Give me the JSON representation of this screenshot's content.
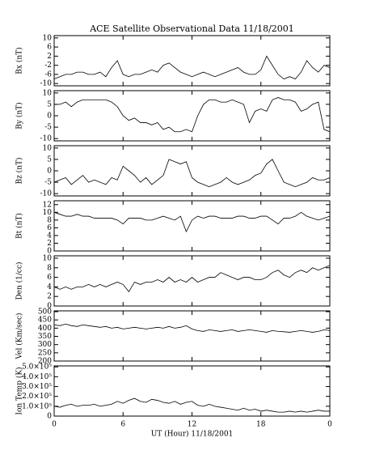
{
  "chart_data": [
    {
      "type": "line",
      "title": "ACE Satellite Observational Data   11/18/2001",
      "ylabel": "Bx (nT)",
      "color": "#000000",
      "x": [
        0,
        0.5,
        1,
        1.5,
        2,
        2.5,
        3,
        3.5,
        4,
        4.5,
        5,
        5.5,
        6,
        6.5,
        7,
        7.5,
        8,
        8.5,
        9,
        9.5,
        10,
        10.5,
        11,
        11.5,
        12,
        12.5,
        13,
        13.5,
        14,
        14.5,
        15,
        15.5,
        16,
        16.5,
        17,
        17.5,
        18,
        18.5,
        19,
        19.5,
        20,
        20.5,
        21,
        21.5,
        22,
        22.5,
        23,
        23.5,
        24
      ],
      "values": [
        -8,
        -7,
        -6,
        -6,
        -5,
        -5,
        -6,
        -6,
        -5,
        -7,
        -3,
        0,
        -6,
        -7,
        -6,
        -6,
        -5,
        -4,
        -5,
        -2,
        -1,
        -3,
        -5,
        -6,
        -7,
        -6,
        -5,
        -6,
        -7,
        -6,
        -5,
        -4,
        -3,
        -5,
        -6,
        -6,
        -4,
        2,
        -2,
        -6,
        -8,
        -7,
        -8,
        -5,
        0,
        -3,
        -5,
        -2,
        -3
      ],
      "xlim": [
        0,
        24
      ],
      "xticks": [
        0,
        6,
        12,
        18,
        {
          "value": 24,
          "label": "0"
        }
      ],
      "ylim": [
        -11,
        11
      ],
      "yticks": [
        10,
        6,
        2,
        -2,
        -6,
        -10
      ]
    },
    {
      "type": "line",
      "ylabel": "By (nT)",
      "color": "#000000",
      "x": [
        0,
        0.5,
        1,
        1.5,
        2,
        2.5,
        3,
        3.5,
        4,
        4.5,
        5,
        5.5,
        6,
        6.5,
        7,
        7.5,
        8,
        8.5,
        9,
        9.5,
        10,
        10.5,
        11,
        11.5,
        12,
        12.5,
        13,
        13.5,
        14,
        14.5,
        15,
        15.5,
        16,
        16.5,
        17,
        17.5,
        18,
        18.5,
        19,
        19.5,
        20,
        20.5,
        21,
        21.5,
        22,
        22.5,
        23,
        23.5,
        24
      ],
      "values": [
        5,
        5,
        6,
        4,
        6,
        7,
        7,
        7,
        7,
        7,
        6,
        4,
        0,
        -2,
        -1,
        -3,
        -3,
        -4,
        -3,
        -6,
        -5,
        -7,
        -7,
        -6,
        -7,
        0,
        5,
        7,
        7,
        6,
        6,
        7,
        6,
        5,
        -3,
        2,
        3,
        2,
        7,
        8,
        7,
        7,
        6,
        2,
        3,
        5,
        6,
        -6,
        -7
      ],
      "xlim": [
        0,
        24
      ],
      "xticks": [
        0,
        6,
        12,
        18,
        {
          "value": 24,
          "label": "0"
        }
      ],
      "ylim": [
        -11,
        11
      ],
      "yticks": [
        10,
        5,
        0,
        -5,
        -10
      ]
    },
    {
      "type": "line",
      "ylabel": "Bz (nT)",
      "color": "#000000",
      "x": [
        0,
        0.5,
        1,
        1.5,
        2,
        2.5,
        3,
        3.5,
        4,
        4.5,
        5,
        5.5,
        6,
        6.5,
        7,
        7.5,
        8,
        8.5,
        9,
        9.5,
        10,
        10.5,
        11,
        11.5,
        12,
        12.5,
        13,
        13.5,
        14,
        14.5,
        15,
        15.5,
        16,
        16.5,
        17,
        17.5,
        18,
        18.5,
        19,
        19.5,
        20,
        20.5,
        21,
        21.5,
        22,
        22.5,
        23,
        23.5,
        24
      ],
      "values": [
        -5,
        -4,
        -3,
        -6,
        -4,
        -2,
        -5,
        -4,
        -5,
        -6,
        -3,
        -4,
        2,
        0,
        -2,
        -5,
        -3,
        -6,
        -4,
        -2,
        5,
        4,
        3,
        4,
        -3,
        -5,
        -6,
        -7,
        -6,
        -5,
        -3,
        -5,
        -6,
        -5,
        -4,
        -2,
        -1,
        3,
        5,
        0,
        -5,
        -6,
        -7,
        -6,
        -5,
        -3,
        -4,
        -4,
        -3
      ],
      "xlim": [
        0,
        24
      ],
      "xticks": [
        0,
        6,
        12,
        18,
        {
          "value": 24,
          "label": "0"
        }
      ],
      "ylim": [
        -11,
        11
      ],
      "yticks": [
        10,
        5,
        0,
        -5,
        -10
      ]
    },
    {
      "type": "line",
      "ylabel": "Bt (nT)",
      "color": "#000000",
      "x": [
        0,
        0.5,
        1,
        1.5,
        2,
        2.5,
        3,
        3.5,
        4,
        4.5,
        5,
        5.5,
        6,
        6.5,
        7,
        7.5,
        8,
        8.5,
        9,
        9.5,
        10,
        10.5,
        11,
        11.5,
        12,
        12.5,
        13,
        13.5,
        14,
        14.5,
        15,
        15.5,
        16,
        16.5,
        17,
        17.5,
        18,
        18.5,
        19,
        19.5,
        20,
        20.5,
        21,
        21.5,
        22,
        22.5,
        23,
        23.5,
        24
      ],
      "values": [
        10,
        9.5,
        9,
        9,
        9.5,
        9,
        9,
        8.5,
        8.5,
        8.5,
        8.5,
        8,
        7,
        8.5,
        8.5,
        8.5,
        8,
        8,
        8.5,
        9,
        8.5,
        8,
        9,
        5,
        8,
        9,
        8.5,
        9,
        9,
        8.5,
        8.5,
        8.5,
        9,
        9,
        8.5,
        8.5,
        9,
        9,
        8,
        7,
        8.5,
        8.5,
        9,
        10,
        9,
        8.5,
        8,
        8.5,
        9
      ],
      "xlim": [
        0,
        24
      ],
      "xticks": [
        0,
        6,
        12,
        18,
        {
          "value": 24,
          "label": "0"
        }
      ],
      "ylim": [
        0,
        13
      ],
      "yticks": [
        12,
        10,
        8,
        6,
        4,
        2,
        0
      ]
    },
    {
      "type": "line",
      "ylabel": "Den (1/cc)",
      "color": "#000000",
      "x": [
        0,
        0.5,
        1,
        1.5,
        2,
        2.5,
        3,
        3.5,
        4,
        4.5,
        5,
        5.5,
        6,
        6.5,
        7,
        7.5,
        8,
        8.5,
        9,
        9.5,
        10,
        10.5,
        11,
        11.5,
        12,
        12.5,
        13,
        13.5,
        14,
        14.5,
        15,
        15.5,
        16,
        16.5,
        17,
        17.5,
        18,
        18.5,
        19,
        19.5,
        20,
        20.5,
        21,
        21.5,
        22,
        22.5,
        23,
        23.5,
        24
      ],
      "values": [
        4,
        3.5,
        4,
        3.5,
        4,
        4,
        4.5,
        4,
        4.5,
        4,
        4.5,
        5,
        4.5,
        3,
        5,
        4.5,
        5,
        5,
        5.5,
        5,
        6,
        5,
        5.5,
        5,
        6,
        5,
        5.5,
        6,
        6,
        7,
        6.5,
        6,
        5.5,
        6,
        6,
        5.5,
        5.5,
        6,
        7,
        7.5,
        6.5,
        6,
        7,
        7.5,
        7,
        8,
        7.5,
        8,
        8.5
      ],
      "xlim": [
        0,
        24
      ],
      "xticks": [
        0,
        6,
        12,
        18,
        {
          "value": 24,
          "label": "0"
        }
      ],
      "ylim": [
        0,
        10.5
      ],
      "yticks": [
        10,
        8,
        6,
        4,
        2,
        0
      ]
    },
    {
      "type": "line",
      "ylabel": "Vel (Km/sec)",
      "color": "#000000",
      "x": [
        0,
        0.5,
        1,
        1.5,
        2,
        2.5,
        3,
        3.5,
        4,
        4.5,
        5,
        5.5,
        6,
        6.5,
        7,
        7.5,
        8,
        8.5,
        9,
        9.5,
        10,
        10.5,
        11,
        11.5,
        12,
        12.5,
        13,
        13.5,
        14,
        14.5,
        15,
        15.5,
        16,
        16.5,
        17,
        17.5,
        18,
        18.5,
        19,
        19.5,
        20,
        20.5,
        21,
        21.5,
        22,
        22.5,
        23,
        23.5,
        24
      ],
      "values": [
        420,
        415,
        425,
        415,
        410,
        420,
        415,
        410,
        405,
        410,
        400,
        405,
        395,
        400,
        405,
        400,
        395,
        400,
        405,
        400,
        410,
        400,
        405,
        415,
        395,
        385,
        380,
        390,
        385,
        380,
        385,
        390,
        380,
        385,
        390,
        385,
        380,
        375,
        385,
        380,
        378,
        375,
        380,
        385,
        380,
        375,
        380,
        390,
        385
      ],
      "xlim": [
        0,
        24
      ],
      "xticks": [
        0,
        6,
        12,
        18,
        {
          "value": 24,
          "label": "0"
        }
      ],
      "ylim": [
        200,
        505
      ],
      "yticks": [
        500,
        450,
        400,
        350,
        300,
        250,
        200
      ]
    },
    {
      "type": "line",
      "ylabel": "Ion Temp (K)",
      "xlabel": "UT (Hour)   11/18/2001",
      "color": "#000000",
      "x": [
        0,
        0.5,
        1,
        1.5,
        2,
        2.5,
        3,
        3.5,
        4,
        4.5,
        5,
        5.5,
        6,
        6.5,
        7,
        7.5,
        8,
        8.5,
        9,
        9.5,
        10,
        10.5,
        11,
        11.5,
        12,
        12.5,
        13,
        13.5,
        14,
        14.5,
        15,
        15.5,
        16,
        16.5,
        17,
        17.5,
        18,
        18.5,
        19,
        19.5,
        20,
        20.5,
        21,
        21.5,
        22,
        22.5,
        23,
        23.5,
        24
      ],
      "values": [
        100000,
        90000,
        110000,
        120000,
        100000,
        110000,
        110000,
        120000,
        100000,
        110000,
        120000,
        150000,
        130000,
        160000,
        180000,
        150000,
        140000,
        170000,
        160000,
        140000,
        130000,
        150000,
        120000,
        140000,
        150000,
        110000,
        100000,
        120000,
        100000,
        90000,
        80000,
        70000,
        60000,
        80000,
        60000,
        70000,
        50000,
        60000,
        50000,
        40000,
        40000,
        50000,
        40000,
        50000,
        40000,
        50000,
        60000,
        50000,
        50000
      ],
      "xlim": [
        0,
        24
      ],
      "xticks": [
        0,
        6,
        12,
        18,
        {
          "value": 24,
          "label": "0"
        }
      ],
      "ylim": [
        0,
        510000
      ],
      "yticks": [
        {
          "value": 500000,
          "label": "5.0×10⁵"
        },
        {
          "value": 400000,
          "label": "4.0×10⁵"
        },
        {
          "value": 300000,
          "label": "3.0×10⁵"
        },
        {
          "value": 200000,
          "label": "2.0×10⁵"
        },
        {
          "value": 100000,
          "label": "1.0×10⁵"
        },
        0
      ]
    }
  ]
}
